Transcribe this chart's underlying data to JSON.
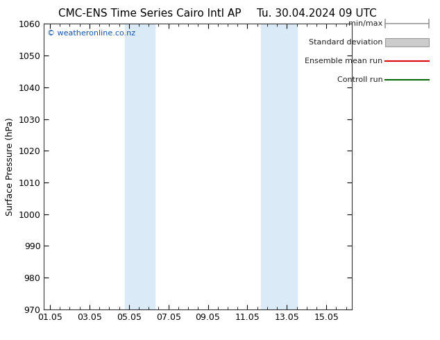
{
  "title": "CMC-ENS Time Series Cairo Intl AP",
  "title_right": "Tu. 30.04.2024 09 UTC",
  "ylabel": "Surface Pressure (hPa)",
  "watermark": "© weatheronline.co.nz",
  "ylim": [
    970,
    1060
  ],
  "yticks": [
    970,
    980,
    990,
    1000,
    1010,
    1020,
    1030,
    1040,
    1050,
    1060
  ],
  "xtick_labels": [
    "01.05",
    "03.05",
    "05.05",
    "07.05",
    "09.05",
    "11.05",
    "13.05",
    "15.05"
  ],
  "xtick_positions": [
    0,
    2,
    4,
    6,
    8,
    10,
    12,
    14
  ],
  "xmin": -0.3,
  "xmax": 15.3,
  "shaded_bands": [
    {
      "xmin": 3.8,
      "xmax": 5.3,
      "color": "#daeaf6"
    },
    {
      "xmin": 10.7,
      "xmax": 12.5,
      "color": "#daeaf6"
    }
  ],
  "legend_entries": [
    {
      "label": "min/max",
      "color": "#aaaaaa",
      "style": "minmax"
    },
    {
      "label": "Standard deviation",
      "color": "#cccccc",
      "style": "stddev"
    },
    {
      "label": "Ensemble mean run",
      "color": "#dd0000",
      "style": "line"
    },
    {
      "label": "Controll run",
      "color": "#006600",
      "style": "line"
    }
  ],
  "background_color": "#ffffff",
  "plot_bg_color": "#ffffff",
  "title_fontsize": 11,
  "axis_fontsize": 9,
  "tick_fontsize": 9,
  "watermark_color": "#1155aa"
}
